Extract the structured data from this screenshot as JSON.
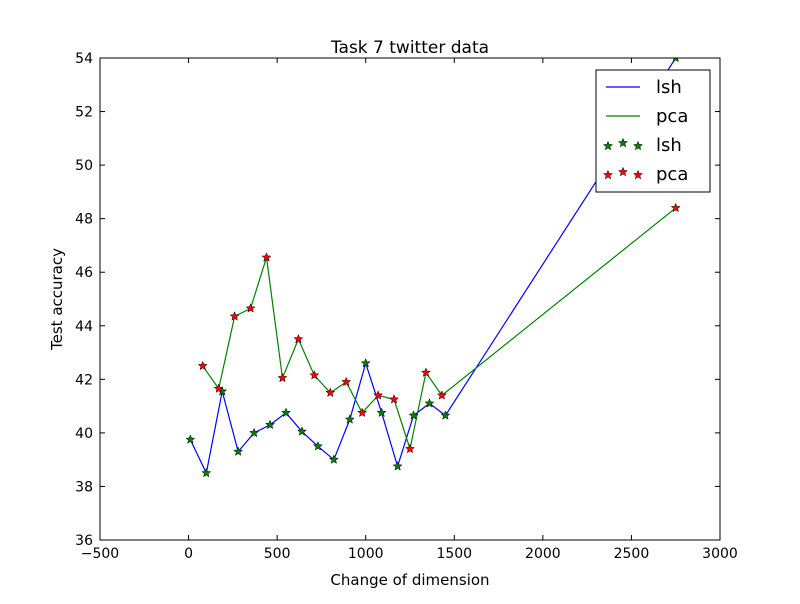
{
  "chart_data": {
    "type": "line",
    "title": "Task 7 twitter data",
    "xlabel": "Change of dimension",
    "ylabel": "Test accuracy",
    "xlim": [
      -500,
      3000
    ],
    "ylim": [
      36,
      54
    ],
    "x_ticks": [
      -500,
      0,
      500,
      1000,
      1500,
      2000,
      2500,
      3000
    ],
    "y_ticks": [
      36,
      38,
      40,
      42,
      44,
      46,
      48,
      50,
      52,
      54
    ],
    "x_tick_labels": [
      "−500",
      "0",
      "500",
      "1000",
      "1500",
      "2000",
      "2500",
      "3000"
    ],
    "y_tick_labels": [
      "36",
      "38",
      "40",
      "42",
      "44",
      "46",
      "48",
      "50",
      "52",
      "54"
    ],
    "grid": false,
    "legend_position": "top-right",
    "series": [
      {
        "name": "lsh",
        "style": "line",
        "color": "#0000ff",
        "x": [
          10,
          100,
          190,
          280,
          370,
          460,
          550,
          640,
          730,
          820,
          910,
          1000,
          1090,
          1180,
          1270,
          1360,
          1450,
          2750
        ],
        "y": [
          39.75,
          38.5,
          41.55,
          39.3,
          40.0,
          40.3,
          40.75,
          40.05,
          39.5,
          39.0,
          40.5,
          42.6,
          40.75,
          38.75,
          40.65,
          41.1,
          40.65,
          54.0
        ]
      },
      {
        "name": "pca",
        "style": "line",
        "color": "#008000",
        "x": [
          80,
          170,
          260,
          350,
          440,
          530,
          620,
          710,
          800,
          890,
          980,
          1070,
          1160,
          1250,
          1340,
          1430,
          2750
        ],
        "y": [
          42.5,
          41.65,
          44.35,
          44.65,
          46.55,
          42.05,
          43.5,
          42.15,
          41.5,
          41.9,
          40.75,
          41.4,
          41.25,
          39.4,
          42.25,
          41.4,
          48.4
        ]
      },
      {
        "name": "lsh",
        "style": "markers",
        "color": "#008000",
        "marker": "star",
        "x": [
          10,
          100,
          190,
          280,
          370,
          460,
          550,
          640,
          730,
          820,
          910,
          1000,
          1090,
          1180,
          1270,
          1360,
          1450,
          2750
        ],
        "y": [
          39.75,
          38.5,
          41.55,
          39.3,
          40.0,
          40.3,
          40.75,
          40.05,
          39.5,
          39.0,
          40.5,
          42.6,
          40.75,
          38.75,
          40.65,
          41.1,
          40.65,
          54.0
        ]
      },
      {
        "name": "pca",
        "style": "markers",
        "color": "#ff0000",
        "marker": "star",
        "x": [
          80,
          170,
          260,
          350,
          440,
          530,
          620,
          710,
          800,
          890,
          980,
          1070,
          1160,
          1250,
          1340,
          1430,
          2750
        ],
        "y": [
          42.5,
          41.65,
          44.35,
          44.65,
          46.55,
          42.05,
          43.5,
          42.15,
          41.5,
          41.9,
          40.75,
          41.4,
          41.25,
          39.4,
          42.25,
          41.4,
          48.4
        ]
      }
    ],
    "legend": {
      "entries": [
        {
          "label": "lsh",
          "kind": "line",
          "color": "#0000ff"
        },
        {
          "label": "pca",
          "kind": "line",
          "color": "#008000"
        },
        {
          "label": "lsh",
          "kind": "markers",
          "color": "#008000"
        },
        {
          "label": " pca",
          "kind": "markers",
          "color": "#ff0000"
        }
      ]
    }
  }
}
